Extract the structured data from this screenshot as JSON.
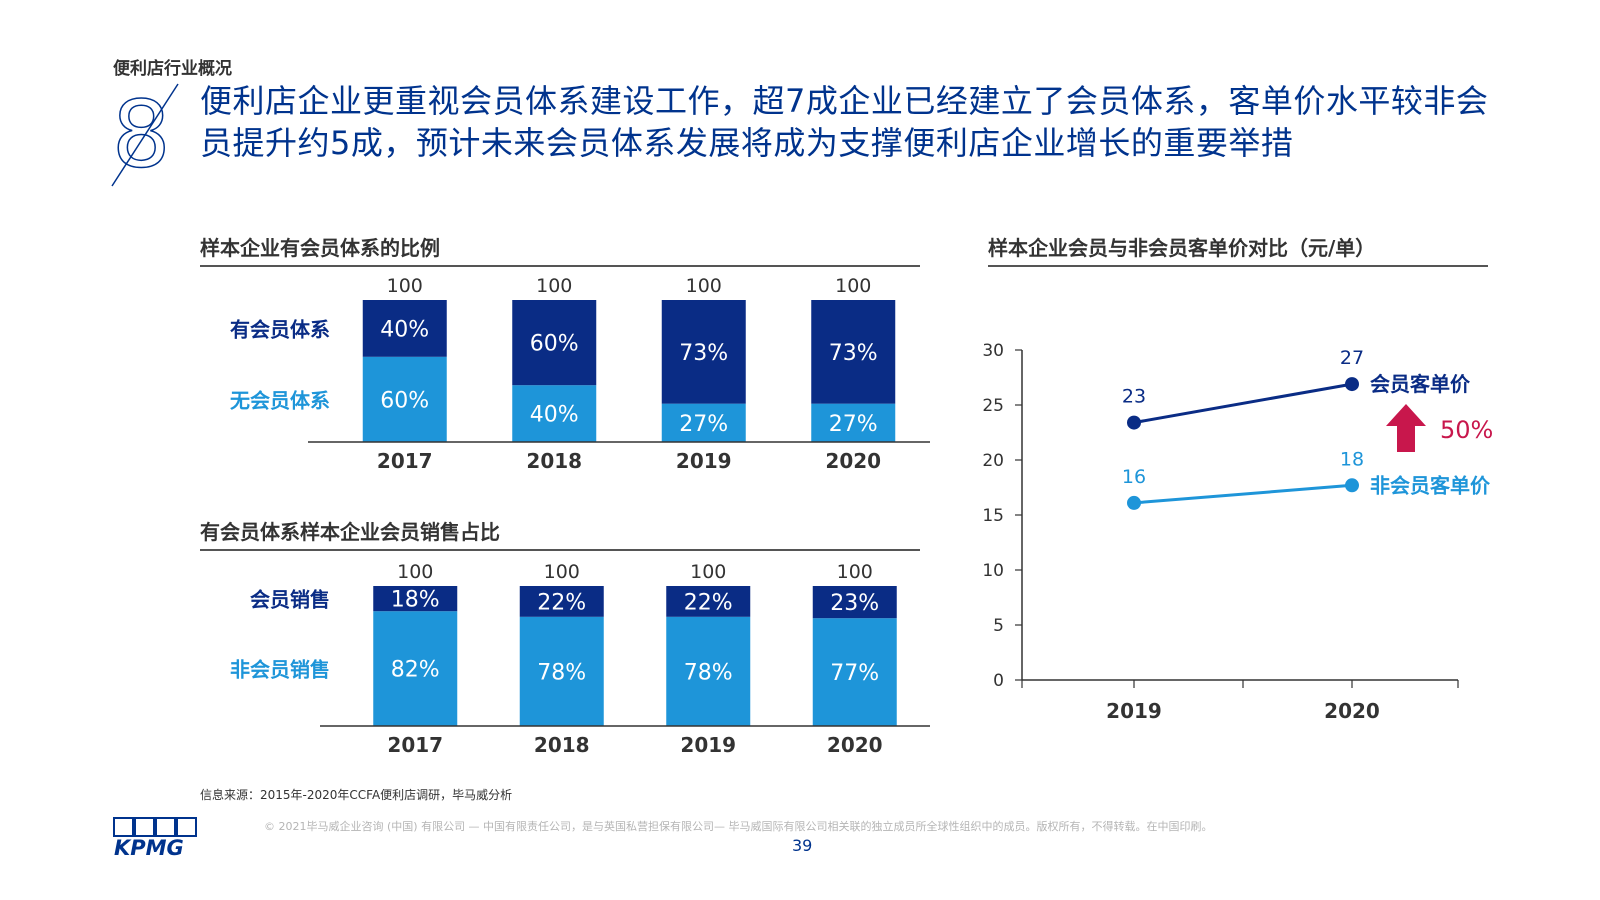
{
  "header": {
    "section_label": "便利店行业概况",
    "big_number": "8",
    "headline": "便利店企业更重视会员体系建设工作，超7成企业已经建立了会员体系，客单价水平较非会员提升约5成，预计未来会员体系发展将成为支撑便利店企业增长的重要举措"
  },
  "colors": {
    "dark_blue": "#0A2C85",
    "light_blue": "#1E95D9",
    "title_blue": "#00338D",
    "arrow_red": "#C8174C"
  },
  "chart_data": [
    {
      "type": "bar",
      "stacked": true,
      "title": "样本企业有会员体系的比例",
      "categories": [
        "2017",
        "2018",
        "2019",
        "2020"
      ],
      "totals": [
        "100",
        "100",
        "100",
        "100"
      ],
      "series": [
        {
          "name": "有会员体系",
          "values": [
            40,
            60,
            73,
            73
          ],
          "labels": [
            "40%",
            "60%",
            "73%",
            "73%"
          ],
          "color": "#0A2C85"
        },
        {
          "name": "无会员体系",
          "values": [
            60,
            40,
            27,
            27
          ],
          "labels": [
            "60%",
            "40%",
            "27%",
            "27%"
          ],
          "color": "#1E95D9"
        }
      ]
    },
    {
      "type": "bar",
      "stacked": true,
      "title": "有会员体系样本企业会员销售占比",
      "categories": [
        "2017",
        "2018",
        "2019",
        "2020"
      ],
      "totals": [
        "100",
        "100",
        "100",
        "100"
      ],
      "series": [
        {
          "name": "会员销售",
          "values": [
            18,
            22,
            22,
            23
          ],
          "labels": [
            "18%",
            "22%",
            "22%",
            "23%"
          ],
          "color": "#0A2C85"
        },
        {
          "name": "非会员销售",
          "values": [
            82,
            78,
            78,
            77
          ],
          "labels": [
            "82%",
            "78%",
            "78%",
            "77%"
          ],
          "color": "#1E95D9"
        }
      ]
    },
    {
      "type": "line",
      "title": "样本企业会员与非会员客单价对比（元/单）",
      "x": [
        "2019",
        "2020"
      ],
      "ylim": [
        0,
        30
      ],
      "yticks": [
        "0",
        "5",
        "10",
        "15",
        "20",
        "25",
        "30"
      ],
      "series": [
        {
          "name": "会员客单价",
          "values": [
            23.4,
            26.9
          ],
          "labels": [
            "23",
            "27"
          ],
          "color": "#0A2C85"
        },
        {
          "name": "非会员客单价",
          "values": [
            16.1,
            17.7
          ],
          "labels": [
            "16",
            "18"
          ],
          "color": "#1E95D9"
        }
      ],
      "annotation": {
        "text": "50%",
        "color": "#C8174C"
      }
    }
  ],
  "footer": {
    "source": "信息来源：2015年-2020年CCFA便利店调研，毕马威分析",
    "logo_text": "KPMG",
    "copyright": "© 2021毕马威企业咨询 (中国) 有限公司 — 中国有限责任公司，是与英国私营担保有限公司— 毕马威国际有限公司相关联的独立成员所全球性组织中的成员。版权所有，不得转载。在中国印刷。",
    "page_number": "39"
  }
}
